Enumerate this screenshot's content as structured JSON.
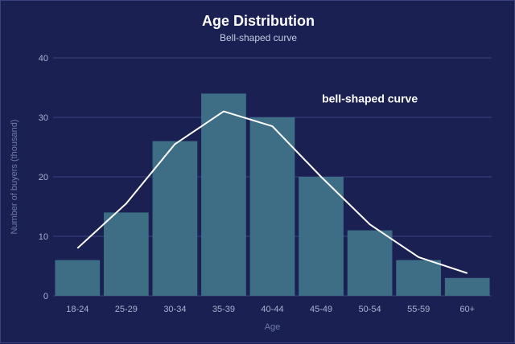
{
  "chart_data": {
    "type": "bar",
    "title": "Age Distribution",
    "subtitle": "Bell-shaped curve",
    "xlabel": "Age",
    "ylabel": "Number of buyers (thousand)",
    "categories": [
      "18-24",
      "25-29",
      "30-34",
      "35-39",
      "40-44",
      "45-49",
      "50-54",
      "55-59",
      "60+"
    ],
    "series": [
      {
        "type": "bar",
        "values": [
          6,
          14,
          26,
          34,
          30,
          20,
          11,
          6,
          3
        ],
        "color": "#3e6e86"
      },
      {
        "type": "line",
        "values": [
          8,
          15.5,
          25.5,
          31,
          28.5,
          20,
          12,
          6.5,
          3.8
        ],
        "color": "#ffffff"
      }
    ],
    "ylim": [
      0,
      40
    ],
    "yticks": [
      0,
      10,
      20,
      30,
      40
    ],
    "grid": true,
    "annotation": {
      "text": "bell-shaped curve",
      "category": "50-54",
      "value": 32.5
    },
    "colors": {
      "background": "#1a2152",
      "grid": "#3a4380",
      "bar": "#3e6e86",
      "line": "#ffffff"
    }
  }
}
